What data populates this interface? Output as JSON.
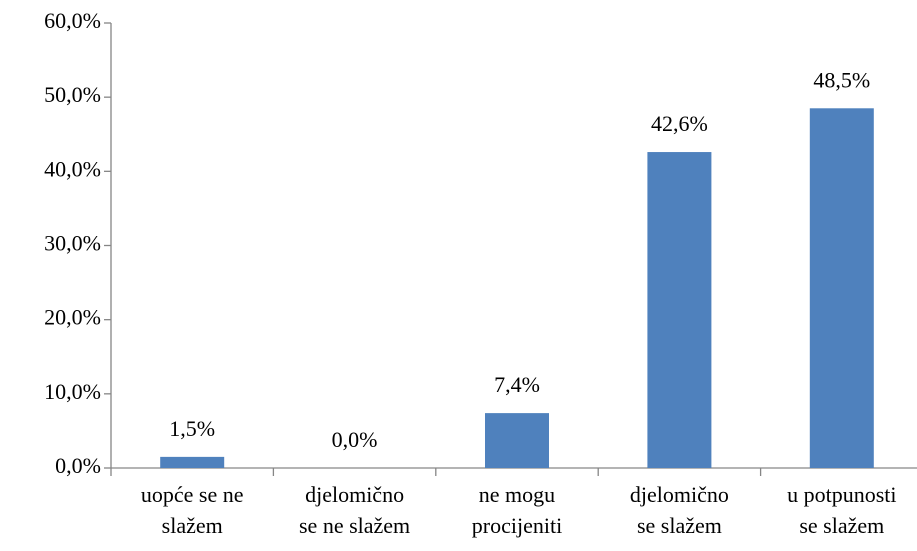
{
  "chart_data": {
    "type": "bar",
    "categories": [
      [
        "uopće se ne",
        "slažem"
      ],
      [
        "djelomično",
        "se ne slažem"
      ],
      [
        "ne mogu",
        "procijeniti"
      ],
      [
        "djelomično",
        "se slažem"
      ],
      [
        "u potpunosti",
        "se slažem"
      ]
    ],
    "values": [
      1.5,
      0.0,
      7.4,
      42.6,
      48.5
    ],
    "value_labels": [
      "1,5%",
      "0,0%",
      "7,4%",
      "42,6%",
      "48,5%"
    ],
    "color": "#4f81bd",
    "ylim": [
      0,
      60
    ],
    "yticks": [
      {
        "value": 0,
        "label": "0,0%"
      },
      {
        "value": 10,
        "label": "10,0%"
      },
      {
        "value": 20,
        "label": "20,0%"
      },
      {
        "value": 30,
        "label": "30,0%"
      },
      {
        "value": 40,
        "label": "40,0%"
      },
      {
        "value": 50,
        "label": "50,0%"
      },
      {
        "value": 60,
        "label": "60,0%"
      }
    ],
    "grid": false
  }
}
